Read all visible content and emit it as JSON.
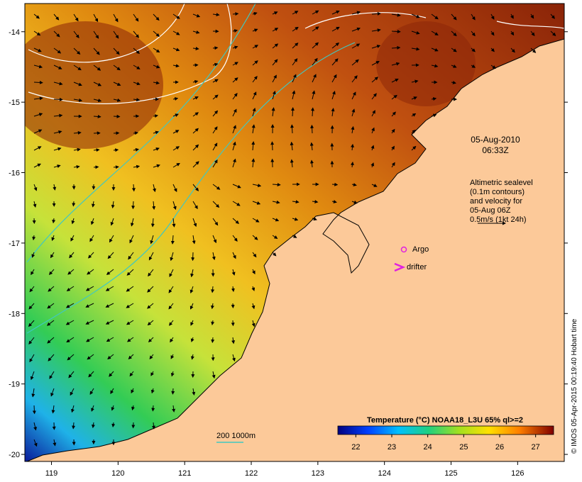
{
  "map": {
    "x_ticks": [
      "119",
      "120",
      "121",
      "122",
      "123",
      "124",
      "125",
      "126"
    ],
    "y_ticks": [
      "-14",
      "-15",
      "-16",
      "-17",
      "-18",
      "-19",
      "-20"
    ],
    "lon_range": [
      118.6,
      126.7
    ],
    "lat_range": [
      -20.1,
      -13.6
    ]
  },
  "timestamp": {
    "date": "05-Aug-2010",
    "time": "06:33Z"
  },
  "altimetry_note": {
    "line1": "Altimetric sealevel",
    "line2": "(0.1m contours)",
    "line3": "and velocity for",
    "line4": "05-Aug 06Z",
    "line5": "0.5m/s (1kt 24h)"
  },
  "legend": {
    "argo": "Argo",
    "drifter": "drifter",
    "isobath": "200  1000m"
  },
  "colorbar": {
    "title": "Temperature (°C) NOAA18_L3U 65% ql>=2",
    "ticks": [
      "22",
      "23",
      "24",
      "25",
      "26",
      "27"
    ],
    "range": [
      21.5,
      27.5
    ]
  },
  "credit": "© IMOS 05-Apr-2015 00:19:40 Hobart time",
  "colors": {
    "land": "#FCC999",
    "isobath": "#40C8C0",
    "contour": "#FFFFFF",
    "argo": "#E020E0",
    "drifter": "#E020E0"
  }
}
